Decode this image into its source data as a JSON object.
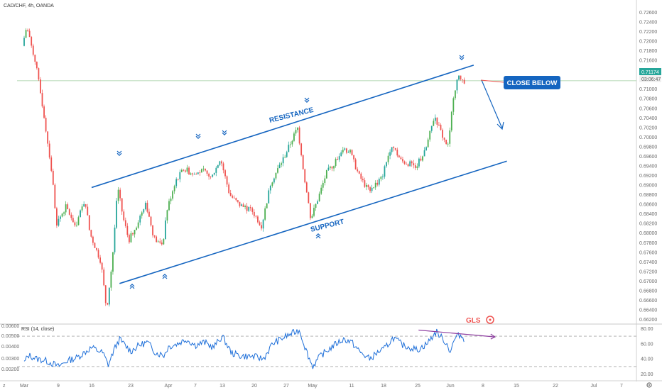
{
  "header": {
    "symbol": "CAD/CHF, 4h, OANDA",
    "rsi_label": "RSI (14, close)"
  },
  "colors": {
    "up": "#26a69a",
    "up_bright": "#4caf50",
    "down": "#ef5350",
    "channel": "#1565c0",
    "rsi_line": "#1e6fd9",
    "rsi_divergence": "#8e3fa0",
    "price_tag": "#26a69a",
    "current_line": "#9ccc9c",
    "axis_text": "#6b6b6b"
  },
  "icons": [
    "z-icon",
    "gear-icon",
    "tradingview-logo"
  ],
  "chart_data": [
    {
      "type": "candlestick",
      "title": "CAD/CHF, 4h, OANDA",
      "ylim": [
        0.6612,
        0.7265
      ],
      "y_ticks": [
        "0.72600",
        "0.72400",
        "0.72200",
        "0.72000",
        "0.71800",
        "0.71600",
        "0.71400",
        "0.71200",
        "0.71000",
        "0.70800",
        "0.70600",
        "0.70400",
        "0.70200",
        "0.70000",
        "0.69800",
        "0.69600",
        "0.69400",
        "0.69200",
        "0.69000",
        "0.68800",
        "0.68600",
        "0.68400",
        "0.68200",
        "0.68000",
        "0.67800",
        "0.67600",
        "0.67400",
        "0.67200",
        "0.67000",
        "0.66800",
        "0.66600",
        "0.66400",
        "0.66200"
      ],
      "x_ticks": [
        "Mar",
        "9",
        "16",
        "23",
        "Apr",
        "7",
        "13",
        "20",
        "27",
        "May",
        "11",
        "18",
        "25",
        "Jun",
        "8",
        "15",
        "22",
        "Jul",
        "7"
      ],
      "current_price": "0.71174",
      "countdown": "03:06:47",
      "price_path": [
        {
          "date": "Mar",
          "price": 0.719
        },
        {
          "date": "Mar 2",
          "price": 0.723
        },
        {
          "date": "Mar 4",
          "price": 0.716
        },
        {
          "date": "Mar 6",
          "price": 0.705
        },
        {
          "date": "Mar 8",
          "price": 0.692
        },
        {
          "date": "9",
          "price": 0.682
        },
        {
          "date": "Mar 11",
          "price": 0.6855
        },
        {
          "date": "Mar 13",
          "price": 0.6815
        },
        {
          "date": "Mar 15",
          "price": 0.687
        },
        {
          "date": "16",
          "price": 0.68
        },
        {
          "date": "Mar 18",
          "price": 0.674
        },
        {
          "date": "Mar 19",
          "price": 0.664
        },
        {
          "date": "Mar 20",
          "price": 0.674
        },
        {
          "date": "Mar 21",
          "price": 0.6895
        },
        {
          "date": "Mar 22",
          "price": 0.683
        },
        {
          "date": "23",
          "price": 0.6785
        },
        {
          "date": "Mar 25",
          "price": 0.682
        },
        {
          "date": "Mar 27",
          "price": 0.6865
        },
        {
          "date": "Mar 29",
          "price": 0.679
        },
        {
          "date": "Mar 31",
          "price": 0.677
        },
        {
          "date": "Apr",
          "price": 0.6845
        },
        {
          "date": "Apr 3",
          "price": 0.691
        },
        {
          "date": "Apr 5",
          "price": 0.6935
        },
        {
          "date": "7",
          "price": 0.692
        },
        {
          "date": "Apr 9",
          "price": 0.693
        },
        {
          "date": "Apr 11",
          "price": 0.6915
        },
        {
          "date": "13",
          "price": 0.6955
        },
        {
          "date": "Apr 15",
          "price": 0.688
        },
        {
          "date": "Apr 17",
          "price": 0.686
        },
        {
          "date": "20",
          "price": 0.6845
        },
        {
          "date": "Apr 22",
          "price": 0.6815
        },
        {
          "date": "Apr 24",
          "price": 0.6905
        },
        {
          "date": "27",
          "price": 0.696
        },
        {
          "date": "Apr 29",
          "price": 0.702
        },
        {
          "date": "Apr 30",
          "price": 0.692
        },
        {
          "date": "May",
          "price": 0.683
        },
        {
          "date": "May 3",
          "price": 0.6875
        },
        {
          "date": "May 5",
          "price": 0.6925
        },
        {
          "date": "May 7",
          "price": 0.6945
        },
        {
          "date": "May 9",
          "price": 0.6975
        },
        {
          "date": "11",
          "price": 0.697
        },
        {
          "date": "May 13",
          "price": 0.692
        },
        {
          "date": "May 15",
          "price": 0.689
        },
        {
          "date": "May 17",
          "price": 0.6905
        },
        {
          "date": "18",
          "price": 0.6915
        },
        {
          "date": "May 20",
          "price": 0.6985
        },
        {
          "date": "May 22",
          "price": 0.695
        },
        {
          "date": "25",
          "price": 0.694
        },
        {
          "date": "May 27",
          "price": 0.697
        },
        {
          "date": "May 29",
          "price": 0.7045
        },
        {
          "date": "May 31",
          "price": 0.6995
        },
        {
          "date": "Jun",
          "price": 0.698
        },
        {
          "date": "Jun 2",
          "price": 0.7085
        },
        {
          "date": "Jun 3",
          "price": 0.7125
        },
        {
          "date": "Jun 4",
          "price": 0.7117
        }
      ],
      "channel": {
        "resistance": [
          {
            "date": "16",
            "price": 0.6895
          },
          {
            "date": "Jun 6",
            "price": 0.715
          }
        ],
        "support": [
          {
            "date": "Mar 21",
            "price": 0.6695
          },
          {
            "date": "Jun 13",
            "price": 0.695
          }
        ],
        "resistance_label": "RESISTANCE",
        "support_label": "SUPPORT",
        "call_label": "CLOSE BELOW"
      }
    },
    {
      "type": "line",
      "title": "RSI (14, close)",
      "ylim": [
        15,
        85
      ],
      "y_ticks": [
        "80.00",
        "60.00",
        "40.00",
        "20.00"
      ],
      "reference_lines": [
        70,
        30
      ],
      "left_scale_ticks": [
        "0.00600",
        "0.00500",
        "0.00400",
        "0.00300",
        "0.00200"
      ],
      "rsi_path": [
        {
          "date": "Mar",
          "value": 35
        },
        {
          "date": "Mar 2",
          "value": 45
        },
        {
          "date": "Mar 4",
          "value": 40
        },
        {
          "date": "Mar 6",
          "value": 38
        },
        {
          "date": "Mar 8",
          "value": 33
        },
        {
          "date": "9",
          "value": 30
        },
        {
          "date": "Mar 11",
          "value": 38
        },
        {
          "date": "Mar 13",
          "value": 42
        },
        {
          "date": "16",
          "value": 55
        },
        {
          "date": "Mar 18",
          "value": 48
        },
        {
          "date": "Mar 19",
          "value": 32
        },
        {
          "date": "Mar 20",
          "value": 52
        },
        {
          "date": "Mar 21",
          "value": 66
        },
        {
          "date": "23",
          "value": 50
        },
        {
          "date": "Mar 25",
          "value": 58
        },
        {
          "date": "Mar 27",
          "value": 62
        },
        {
          "date": "Mar 29",
          "value": 48
        },
        {
          "date": "Mar 31",
          "value": 45
        },
        {
          "date": "Apr",
          "value": 56
        },
        {
          "date": "Apr 3",
          "value": 60
        },
        {
          "date": "Apr 5",
          "value": 66
        },
        {
          "date": "7",
          "value": 58
        },
        {
          "date": "Apr 9",
          "value": 62
        },
        {
          "date": "Apr 11",
          "value": 55
        },
        {
          "date": "13",
          "value": 70
        },
        {
          "date": "Apr 15",
          "value": 48
        },
        {
          "date": "Apr 17",
          "value": 44
        },
        {
          "date": "20",
          "value": 43
        },
        {
          "date": "Apr 22",
          "value": 40
        },
        {
          "date": "Apr 24",
          "value": 60
        },
        {
          "date": "27",
          "value": 70
        },
        {
          "date": "Apr 29",
          "value": 78
        },
        {
          "date": "Apr 30",
          "value": 52
        },
        {
          "date": "May",
          "value": 30
        },
        {
          "date": "May 3",
          "value": 44
        },
        {
          "date": "May 5",
          "value": 52
        },
        {
          "date": "May 7",
          "value": 60
        },
        {
          "date": "May 9",
          "value": 66
        },
        {
          "date": "11",
          "value": 62
        },
        {
          "date": "May 13",
          "value": 48
        },
        {
          "date": "May 15",
          "value": 40
        },
        {
          "date": "May 17",
          "value": 50
        },
        {
          "date": "18",
          "value": 52
        },
        {
          "date": "May 20",
          "value": 68
        },
        {
          "date": "May 22",
          "value": 58
        },
        {
          "date": "25",
          "value": 52
        },
        {
          "date": "May 27",
          "value": 60
        },
        {
          "date": "May 29",
          "value": 76
        },
        {
          "date": "May 31",
          "value": 62
        },
        {
          "date": "Jun",
          "value": 50
        },
        {
          "date": "Jun 2",
          "value": 67
        },
        {
          "date": "Jun 3",
          "value": 72
        },
        {
          "date": "Jun 4",
          "value": 66
        }
      ],
      "divergence": [
        {
          "date": "May 29",
          "value": 78
        },
        {
          "date": "Jun 6",
          "value": 69
        }
      ]
    }
  ]
}
